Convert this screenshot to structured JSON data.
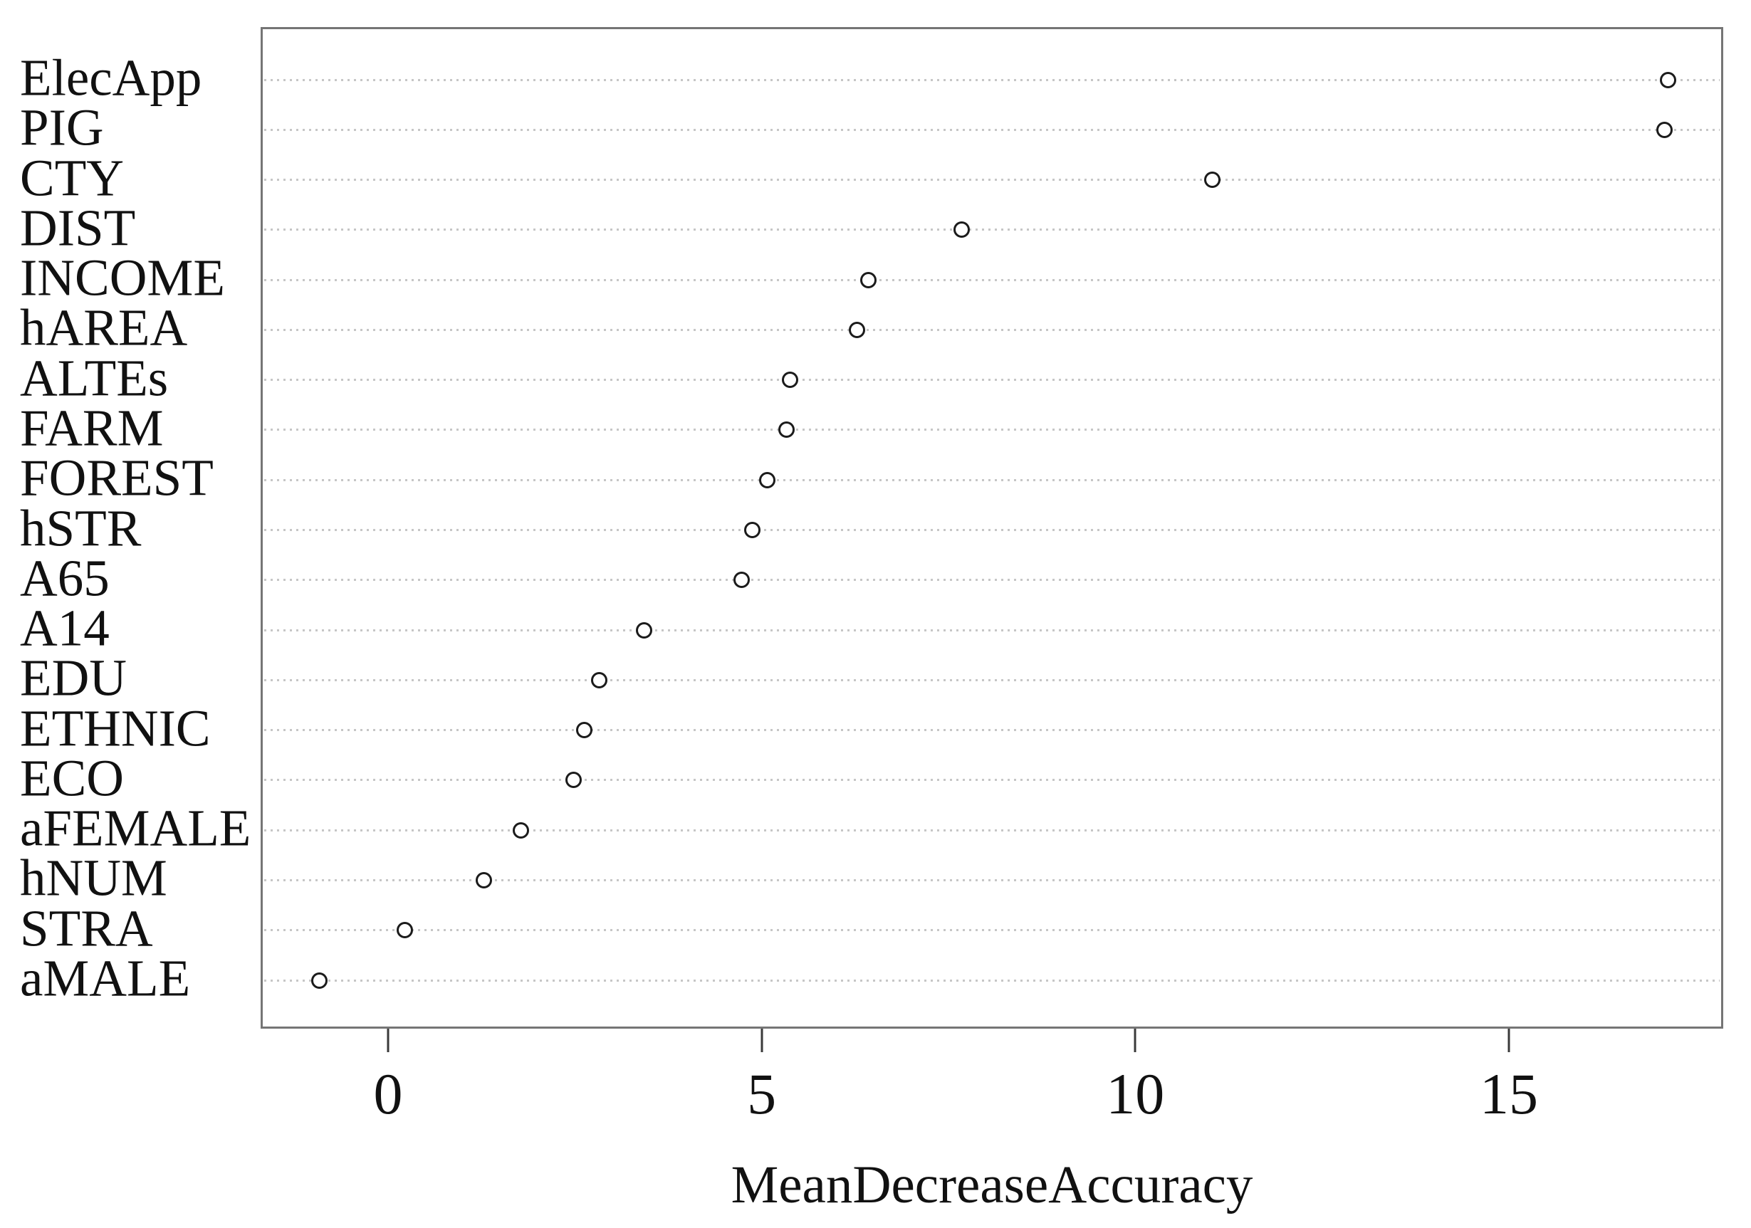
{
  "chart_data": {
    "type": "scatter",
    "subtype": "dotchart-variable-importance",
    "title": "",
    "xlabel": "MeanDecreaseAccuracy",
    "ylabel": "",
    "categories": [
      "ElecApp",
      "PIG",
      "CTY",
      "DIST",
      "INCOME",
      "hAREA",
      "ALTEs",
      "FARM",
      "FOREST",
      "hSTR",
      "A65",
      "A14",
      "EDU",
      "ETHNIC",
      "ECO",
      "aFEMALE",
      "hNUM",
      "STRA",
      "aMALE"
    ],
    "values": [
      17.1,
      17.05,
      11.0,
      7.65,
      6.4,
      6.25,
      5.35,
      5.3,
      5.05,
      4.85,
      4.7,
      3.4,
      2.8,
      2.6,
      2.45,
      1.75,
      1.25,
      0.2,
      -0.95
    ],
    "x_ticks": [
      0,
      5,
      10,
      15
    ],
    "xlim": [
      -1.7,
      17.9
    ],
    "grid": "horizontal dotted line per category",
    "legend": "none",
    "point_style": "open circle, black stroke, white fill"
  },
  "colors": {
    "background": "#ffffff",
    "plot_border": "#757575",
    "gridline": "#c6c6c6",
    "point_stroke": "#1b1b1b",
    "point_fill": "#ffffff",
    "text": "#111111"
  }
}
